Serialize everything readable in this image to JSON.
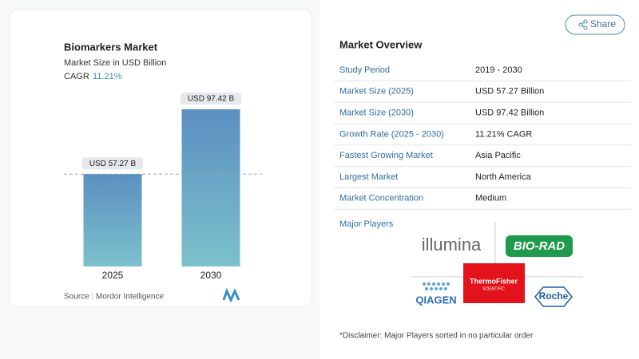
{
  "chart_data": {
    "type": "bar",
    "title": "Biomarkers Market",
    "subtitle": "Market Size in USD Billion",
    "cagr_label": "CAGR",
    "cagr_value": "11.21%",
    "categories": [
      "2025",
      "2030"
    ],
    "values": [
      57.27,
      97.42
    ],
    "value_labels": [
      "USD 57.27 B",
      "USD 97.42 B"
    ],
    "source": "Source :  Mordor Intelligence"
  },
  "share": "Share",
  "overview": {
    "title": "Market Overview",
    "rows": [
      [
        "Study Period",
        "2019 - 2030"
      ],
      [
        "Market Size (2025)",
        "USD 57.27 Billion"
      ],
      [
        "Market Size (2030)",
        "USD 97.42 Billion"
      ],
      [
        "Growth Rate (2025 - 2030)",
        "11.21% CAGR"
      ],
      [
        "Fastest Growing Market",
        "Asia Pacific"
      ],
      [
        "Largest Market",
        "North America"
      ],
      [
        "Market Concentration",
        "Medium"
      ]
    ],
    "players_title": "Major Players",
    "players": [
      "illumina",
      "BIO-RAD",
      "QIAGEN",
      "ThermoFisher",
      "SCIENTIFIC",
      "Roche"
    ],
    "disclaimer": "*Disclaimer: Major Players sorted in no particular order"
  }
}
